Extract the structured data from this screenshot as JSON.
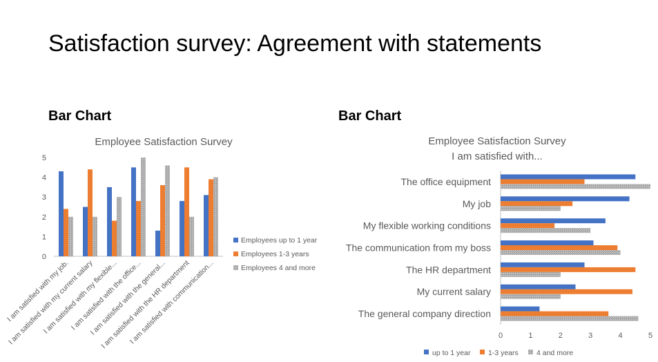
{
  "slide": {
    "title": "Satisfaction survey: Agreement with statements",
    "left_heading": "Bar Chart",
    "right_heading": "Bar Chart"
  },
  "colors": {
    "series1": "#4472C4",
    "series2": "#ED7D31",
    "series3": "#A5A5A5",
    "axis": "#BFBFBF",
    "text": "#595959"
  },
  "chart_data": [
    {
      "type": "bar",
      "orientation": "vertical",
      "title": "Employee Satisfaction Survey",
      "categories": [
        "I am satisfied with my job.",
        "I am satisfied with my current salary",
        "I am satisfied with my flexible...",
        "I am satisfied with the office...",
        "I am satisfied with the general...",
        "I am satisfied with the HR department",
        "I am satisfied with communication..."
      ],
      "series": [
        {
          "name": "Employees up to 1 year",
          "values": [
            4.3,
            2.5,
            3.5,
            4.5,
            1.3,
            2.8,
            3.1
          ]
        },
        {
          "name": "Employees 1-3 years",
          "values": [
            2.4,
            4.4,
            1.8,
            2.8,
            3.6,
            4.5,
            3.9
          ]
        },
        {
          "name": "Employees 4 and more",
          "values": [
            2.0,
            2.0,
            3.0,
            5.0,
            4.6,
            2.0,
            4.0
          ]
        }
      ],
      "ylim": [
        0,
        5
      ],
      "yticks": [
        "0",
        "1",
        "2",
        "3",
        "4",
        "5"
      ],
      "legend": "right"
    },
    {
      "type": "bar",
      "orientation": "horizontal",
      "title": "Employee Satisfaction Survey",
      "subtitle": "I am satisfied with...",
      "categories": [
        "The office equipment",
        "My job",
        "My flexible working conditions",
        "The communication from my boss",
        "The HR department",
        "My current salary",
        "The general company direction"
      ],
      "series": [
        {
          "name": "up to 1 year",
          "values": [
            4.5,
            4.3,
            3.5,
            3.1,
            2.8,
            2.5,
            1.3
          ]
        },
        {
          "name": "1-3 years",
          "values": [
            2.8,
            2.4,
            1.8,
            3.9,
            4.5,
            4.4,
            3.6
          ]
        },
        {
          "name": "4 and more",
          "values": [
            5.0,
            2.0,
            3.0,
            4.0,
            2.0,
            2.0,
            4.6
          ]
        }
      ],
      "xlim": [
        0,
        5
      ],
      "xticks": [
        "0",
        "1",
        "2",
        "3",
        "4",
        "5"
      ],
      "legend": "bottom"
    }
  ]
}
